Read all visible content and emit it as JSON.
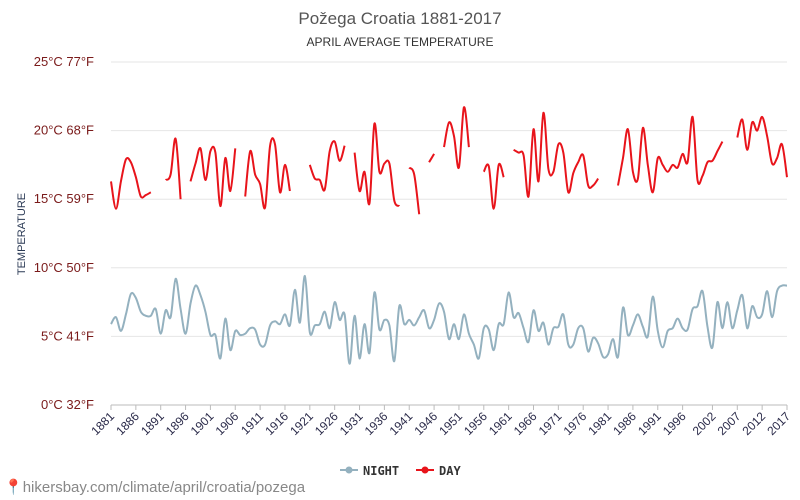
{
  "header": {
    "title": "Požega Croatia 1881-2017",
    "subtitle": "APRIL AVERAGE TEMPERATURE"
  },
  "footer": {
    "url": "hikersbay.com/climate/april/croatia/pozega"
  },
  "colors": {
    "day": "#e8141b",
    "night": "#94b1bf",
    "grid": "#e6e6e6"
  },
  "chart_data": {
    "type": "line",
    "ylabel": "TEMPERATURE",
    "ylim": [
      0,
      25
    ],
    "yticks": [
      {
        "value": 0,
        "label": "0°C 32°F"
      },
      {
        "value": 5,
        "label": "5°C 41°F"
      },
      {
        "value": 10,
        "label": "10°C 50°F"
      },
      {
        "value": 15,
        "label": "15°C 59°F"
      },
      {
        "value": 20,
        "label": "20°C 68°F"
      },
      {
        "value": 25,
        "label": "25°C 77°F"
      }
    ],
    "xlim": [
      1881,
      2017
    ],
    "xticks": [
      1881,
      1886,
      1891,
      1896,
      1901,
      1906,
      1911,
      1916,
      1921,
      1926,
      1931,
      1936,
      1941,
      1946,
      1951,
      1956,
      1961,
      1966,
      1971,
      1976,
      1981,
      1986,
      1991,
      1996,
      2002,
      2007,
      2012,
      2017
    ],
    "legend": {
      "position": "bottom",
      "entries": [
        "NIGHT",
        "DAY"
      ]
    },
    "series": [
      {
        "name": "NIGHT",
        "color": "#94b1bf",
        "points": [
          [
            1881,
            5.9
          ],
          [
            1882,
            6.4
          ],
          [
            1883,
            5.4
          ],
          [
            1884,
            6.6
          ],
          [
            1885,
            8.1
          ],
          [
            1886,
            7.8
          ],
          [
            1887,
            6.8
          ],
          [
            1888,
            6.5
          ],
          [
            1889,
            6.5
          ],
          [
            1890,
            7.0
          ],
          [
            1891,
            5.2
          ],
          [
            1892,
            6.9
          ],
          [
            1893,
            6.4
          ],
          [
            1894,
            9.2
          ],
          [
            1895,
            7.0
          ],
          [
            1896,
            5.2
          ],
          [
            1897,
            7.4
          ],
          [
            1898,
            8.7
          ],
          [
            1899,
            8.0
          ],
          [
            1900,
            6.8
          ],
          [
            1901,
            5.1
          ],
          [
            1902,
            5.1
          ],
          [
            1903,
            3.4
          ],
          [
            1904,
            6.3
          ],
          [
            1905,
            4.0
          ],
          [
            1906,
            5.4
          ],
          [
            1907,
            5.1
          ],
          [
            1908,
            5.2
          ],
          [
            1909,
            5.6
          ],
          [
            1910,
            5.5
          ],
          [
            1911,
            4.4
          ],
          [
            1912,
            4.4
          ],
          [
            1913,
            5.8
          ],
          [
            1914,
            6.1
          ],
          [
            1915,
            5.9
          ],
          [
            1916,
            6.6
          ],
          [
            1917,
            5.8
          ],
          [
            1918,
            8.4
          ],
          [
            1919,
            6.0
          ],
          [
            1920,
            9.4
          ],
          [
            1921,
            5.3
          ],
          [
            1922,
            5.8
          ],
          [
            1923,
            5.9
          ],
          [
            1924,
            6.8
          ],
          [
            1925,
            5.6
          ],
          [
            1926,
            7.5
          ],
          [
            1927,
            6.2
          ],
          [
            1928,
            6.6
          ],
          [
            1929,
            3.0
          ],
          [
            1930,
            6.5
          ],
          [
            1931,
            3.4
          ],
          [
            1932,
            5.9
          ],
          [
            1933,
            3.8
          ],
          [
            1934,
            8.2
          ],
          [
            1935,
            5.5
          ],
          [
            1936,
            6.2
          ],
          [
            1937,
            5.8
          ],
          [
            1938,
            3.2
          ],
          [
            1939,
            7.2
          ],
          [
            1940,
            5.9
          ],
          [
            1941,
            6.2
          ],
          [
            1942,
            5.8
          ],
          [
            1943,
            6.4
          ],
          [
            1944,
            6.9
          ],
          [
            1945,
            5.6
          ],
          [
            1946,
            6.2
          ],
          [
            1947,
            7.4
          ],
          [
            1948,
            6.8
          ],
          [
            1949,
            4.8
          ],
          [
            1950,
            5.9
          ],
          [
            1951,
            4.8
          ],
          [
            1952,
            6.6
          ],
          [
            1953,
            5.2
          ],
          [
            1954,
            4.4
          ],
          [
            1955,
            3.4
          ],
          [
            1956,
            5.6
          ],
          [
            1957,
            5.5
          ],
          [
            1958,
            4.0
          ],
          [
            1959,
            5.9
          ],
          [
            1960,
            5.9
          ],
          [
            1961,
            8.2
          ],
          [
            1962,
            6.4
          ],
          [
            1963,
            6.7
          ],
          [
            1964,
            5.6
          ],
          [
            1965,
            4.6
          ],
          [
            1966,
            6.9
          ],
          [
            1967,
            5.4
          ],
          [
            1968,
            6.0
          ],
          [
            1969,
            4.4
          ],
          [
            1970,
            5.6
          ],
          [
            1971,
            5.7
          ],
          [
            1972,
            6.6
          ],
          [
            1973,
            4.4
          ],
          [
            1974,
            4.4
          ],
          [
            1975,
            5.6
          ],
          [
            1976,
            5.6
          ],
          [
            1977,
            3.9
          ],
          [
            1978,
            4.9
          ],
          [
            1979,
            4.5
          ],
          [
            1980,
            3.5
          ],
          [
            1981,
            3.7
          ],
          [
            1982,
            4.8
          ],
          [
            1983,
            3.5
          ],
          [
            1984,
            7.1
          ],
          [
            1985,
            5.1
          ],
          [
            1986,
            5.8
          ],
          [
            1987,
            6.6
          ],
          [
            1988,
            5.7
          ],
          [
            1989,
            5.0
          ],
          [
            1990,
            7.9
          ],
          [
            1991,
            5.4
          ],
          [
            1992,
            4.2
          ],
          [
            1993,
            5.4
          ],
          [
            1994,
            5.6
          ],
          [
            1995,
            6.3
          ],
          [
            1996,
            5.6
          ],
          [
            1997,
            5.5
          ],
          [
            1998,
            7.0
          ],
          [
            1999,
            7.2
          ],
          [
            2000,
            8.3
          ],
          [
            2001,
            5.7
          ],
          [
            2002,
            4.2
          ],
          [
            2003,
            7.5
          ],
          [
            2004,
            5.6
          ],
          [
            2005,
            7.5
          ],
          [
            2006,
            5.6
          ],
          [
            2007,
            6.9
          ],
          [
            2008,
            8.0
          ],
          [
            2009,
            5.6
          ],
          [
            2010,
            7.2
          ],
          [
            2011,
            6.4
          ],
          [
            2012,
            6.6
          ],
          [
            2013,
            8.3
          ],
          [
            2014,
            6.4
          ],
          [
            2015,
            8.3
          ],
          [
            2016,
            8.7
          ],
          [
            2017,
            8.7
          ]
        ]
      },
      {
        "name": "DAY",
        "color": "#e8141b",
        "points": [
          [
            1881,
            16.3
          ],
          [
            1882,
            14.3
          ],
          [
            1883,
            16.3
          ],
          [
            1884,
            17.9
          ],
          [
            1885,
            17.7
          ],
          [
            1886,
            16.6
          ],
          [
            1887,
            15.2
          ],
          [
            1888,
            15.3
          ],
          [
            1889,
            15.5
          ],
          [
            1890,
            null
          ],
          [
            1891,
            null
          ],
          [
            1892,
            16.4
          ],
          [
            1893,
            16.8
          ],
          [
            1894,
            19.4
          ],
          [
            1895,
            15.0
          ],
          [
            1896,
            null
          ],
          [
            1897,
            16.3
          ],
          [
            1898,
            17.6
          ],
          [
            1899,
            18.7
          ],
          [
            1900,
            16.4
          ],
          [
            1901,
            18.5
          ],
          [
            1902,
            18.4
          ],
          [
            1903,
            14.5
          ],
          [
            1904,
            18.0
          ],
          [
            1905,
            15.6
          ],
          [
            1906,
            18.7
          ],
          [
            1907,
            null
          ],
          [
            1908,
            15.2
          ],
          [
            1909,
            18.5
          ],
          [
            1910,
            16.8
          ],
          [
            1911,
            16.1
          ],
          [
            1912,
            14.4
          ],
          [
            1913,
            18.9
          ],
          [
            1914,
            19.0
          ],
          [
            1915,
            15.5
          ],
          [
            1916,
            17.5
          ],
          [
            1917,
            15.6
          ],
          [
            1918,
            null
          ],
          [
            1919,
            null
          ],
          [
            1920,
            null
          ],
          [
            1921,
            17.5
          ],
          [
            1922,
            16.5
          ],
          [
            1923,
            16.4
          ],
          [
            1924,
            15.7
          ],
          [
            1925,
            18.5
          ],
          [
            1926,
            19.2
          ],
          [
            1927,
            17.8
          ],
          [
            1928,
            18.9
          ],
          [
            1929,
            null
          ],
          [
            1930,
            18.4
          ],
          [
            1931,
            15.6
          ],
          [
            1932,
            17.0
          ],
          [
            1933,
            14.7
          ],
          [
            1934,
            20.5
          ],
          [
            1935,
            17.0
          ],
          [
            1936,
            17.6
          ],
          [
            1937,
            17.6
          ],
          [
            1938,
            14.9
          ],
          [
            1939,
            14.5
          ],
          [
            1940,
            null
          ],
          [
            1941,
            17.3
          ],
          [
            1942,
            16.8
          ],
          [
            1943,
            13.9
          ],
          [
            1944,
            null
          ],
          [
            1945,
            17.7
          ],
          [
            1946,
            18.3
          ],
          [
            1947,
            null
          ],
          [
            1948,
            18.8
          ],
          [
            1949,
            20.6
          ],
          [
            1950,
            19.6
          ],
          [
            1951,
            17.3
          ],
          [
            1952,
            21.7
          ],
          [
            1953,
            18.8
          ],
          [
            1954,
            null
          ],
          [
            1955,
            null
          ],
          [
            1956,
            17.0
          ],
          [
            1957,
            17.4
          ],
          [
            1958,
            14.3
          ],
          [
            1959,
            17.5
          ],
          [
            1960,
            16.6
          ],
          [
            1961,
            null
          ],
          [
            1962,
            18.6
          ],
          [
            1963,
            18.4
          ],
          [
            1964,
            18.2
          ],
          [
            1965,
            15.2
          ],
          [
            1966,
            20.1
          ],
          [
            1967,
            16.3
          ],
          [
            1968,
            21.3
          ],
          [
            1969,
            17.2
          ],
          [
            1970,
            17.0
          ],
          [
            1971,
            19.0
          ],
          [
            1972,
            18.4
          ],
          [
            1973,
            15.5
          ],
          [
            1974,
            16.9
          ],
          [
            1975,
            17.7
          ],
          [
            1976,
            18.2
          ],
          [
            1977,
            16.0
          ],
          [
            1978,
            16.0
          ],
          [
            1979,
            16.5
          ],
          [
            1980,
            null
          ],
          [
            1981,
            null
          ],
          [
            1982,
            null
          ],
          [
            1983,
            16.0
          ],
          [
            1984,
            18.0
          ],
          [
            1985,
            20.1
          ],
          [
            1986,
            17.0
          ],
          [
            1987,
            16.5
          ],
          [
            1988,
            20.2
          ],
          [
            1989,
            17.5
          ],
          [
            1990,
            15.5
          ],
          [
            1991,
            18.0
          ],
          [
            1992,
            17.5
          ],
          [
            1993,
            17.0
          ],
          [
            1994,
            17.5
          ],
          [
            1995,
            17.3
          ],
          [
            1996,
            18.3
          ],
          [
            1997,
            17.7
          ],
          [
            1998,
            21.0
          ],
          [
            1999,
            16.4
          ],
          [
            2000,
            16.7
          ],
          [
            2001,
            17.7
          ],
          [
            2002,
            17.8
          ],
          [
            2003,
            18.5
          ],
          [
            2004,
            19.2
          ],
          [
            2005,
            null
          ],
          [
            2006,
            null
          ],
          [
            2007,
            19.5
          ],
          [
            2008,
            20.8
          ],
          [
            2009,
            18.6
          ],
          [
            2010,
            20.6
          ],
          [
            2011,
            20.0
          ],
          [
            2012,
            21.0
          ],
          [
            2013,
            19.6
          ],
          [
            2014,
            17.6
          ],
          [
            2015,
            18.0
          ],
          [
            2016,
            19.0
          ],
          [
            2017,
            16.6
          ]
        ]
      }
    ]
  }
}
